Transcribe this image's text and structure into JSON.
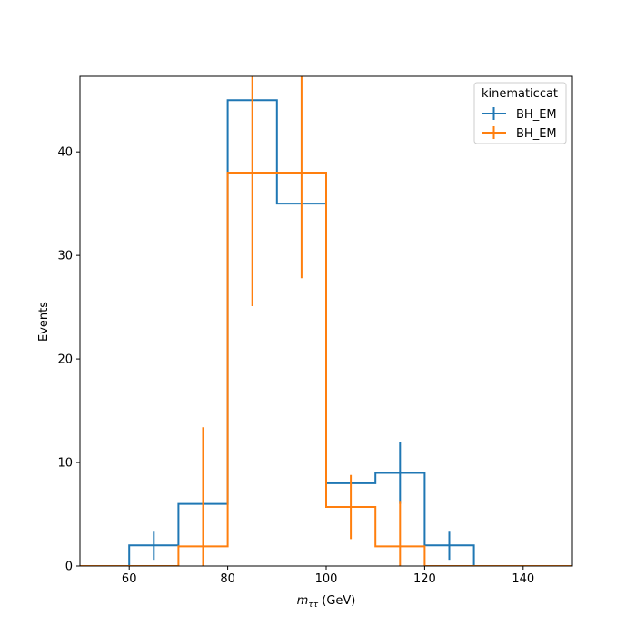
{
  "chart_data": {
    "type": "histogram",
    "xlabel_var": "m",
    "xlabel_sub": "ττ",
    "xlabel_unit": " (GeV)",
    "ylabel": "Events",
    "xlim": [
      50,
      150
    ],
    "ylim": [
      0,
      47.3
    ],
    "xticks": [
      60,
      80,
      100,
      120,
      140
    ],
    "yticks": [
      0,
      10,
      20,
      30,
      40
    ],
    "bin_edges": [
      50,
      60,
      70,
      80,
      90,
      100,
      110,
      120,
      130,
      140,
      150
    ],
    "legend": {
      "title": "kinematiccat",
      "location": "upper right"
    },
    "series": [
      {
        "name": "BH_EM",
        "color": "#1f77b4",
        "values": [
          0,
          2,
          6,
          45,
          35,
          8,
          9,
          2,
          0,
          0
        ],
        "errors": [
          0,
          1.4,
          0,
          0,
          0,
          0,
          3.0,
          1.4,
          0,
          0
        ]
      },
      {
        "name": "BH_EM",
        "color": "#ff7f0e",
        "values": [
          0,
          0,
          1.9,
          38,
          38,
          5.7,
          1.9,
          0,
          0,
          0
        ],
        "errors": [
          0,
          0,
          11.5,
          12.9,
          10.2,
          3.1,
          4.4,
          0,
          0,
          0
        ]
      }
    ]
  }
}
